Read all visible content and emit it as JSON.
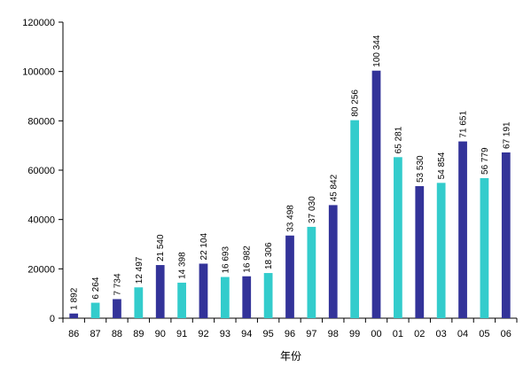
{
  "chart_data": {
    "type": "bar",
    "title": "",
    "xlabel": "年份",
    "ylabel": "",
    "ylim": [
      0,
      120000
    ],
    "yticks": [
      0,
      20000,
      40000,
      60000,
      80000,
      100000,
      120000
    ],
    "ytick_labels": [
      "0",
      "20000",
      "40000",
      "60000",
      "80000",
      "100000",
      "120000"
    ],
    "categories": [
      "86",
      "87",
      "88",
      "89",
      "90",
      "91",
      "92",
      "93",
      "94",
      "95",
      "96",
      "97",
      "98",
      "99",
      "00",
      "01",
      "02",
      "03",
      "04",
      "05",
      "06"
    ],
    "values": [
      1892,
      6264,
      7734,
      12497,
      21540,
      14398,
      22104,
      16693,
      16982,
      18306,
      33498,
      37030,
      45842,
      80256,
      100344,
      65281,
      53530,
      54854,
      71651,
      56779,
      67191
    ],
    "value_labels": [
      "1 892",
      "6 264",
      "7 734",
      "12 497",
      "21 540",
      "14 398",
      "22 104",
      "16 693",
      "16 982",
      "18 306",
      "33 498",
      "37 030",
      "45 842",
      "80 256",
      "100 344",
      "65 281",
      "53 530",
      "54 854",
      "71 651",
      "56 779",
      "67 191"
    ],
    "bar_colors": [
      "#333399",
      "#33CCCC",
      "#333399",
      "#33CCCC",
      "#333399",
      "#33CCCC",
      "#333399",
      "#33CCCC",
      "#333399",
      "#33CCCC",
      "#333399",
      "#33CCCC",
      "#333399",
      "#33CCCC",
      "#333399",
      "#33CCCC",
      "#333399",
      "#33CCCC",
      "#333399",
      "#33CCCC",
      "#333399"
    ],
    "grid": false,
    "legend": "none"
  }
}
